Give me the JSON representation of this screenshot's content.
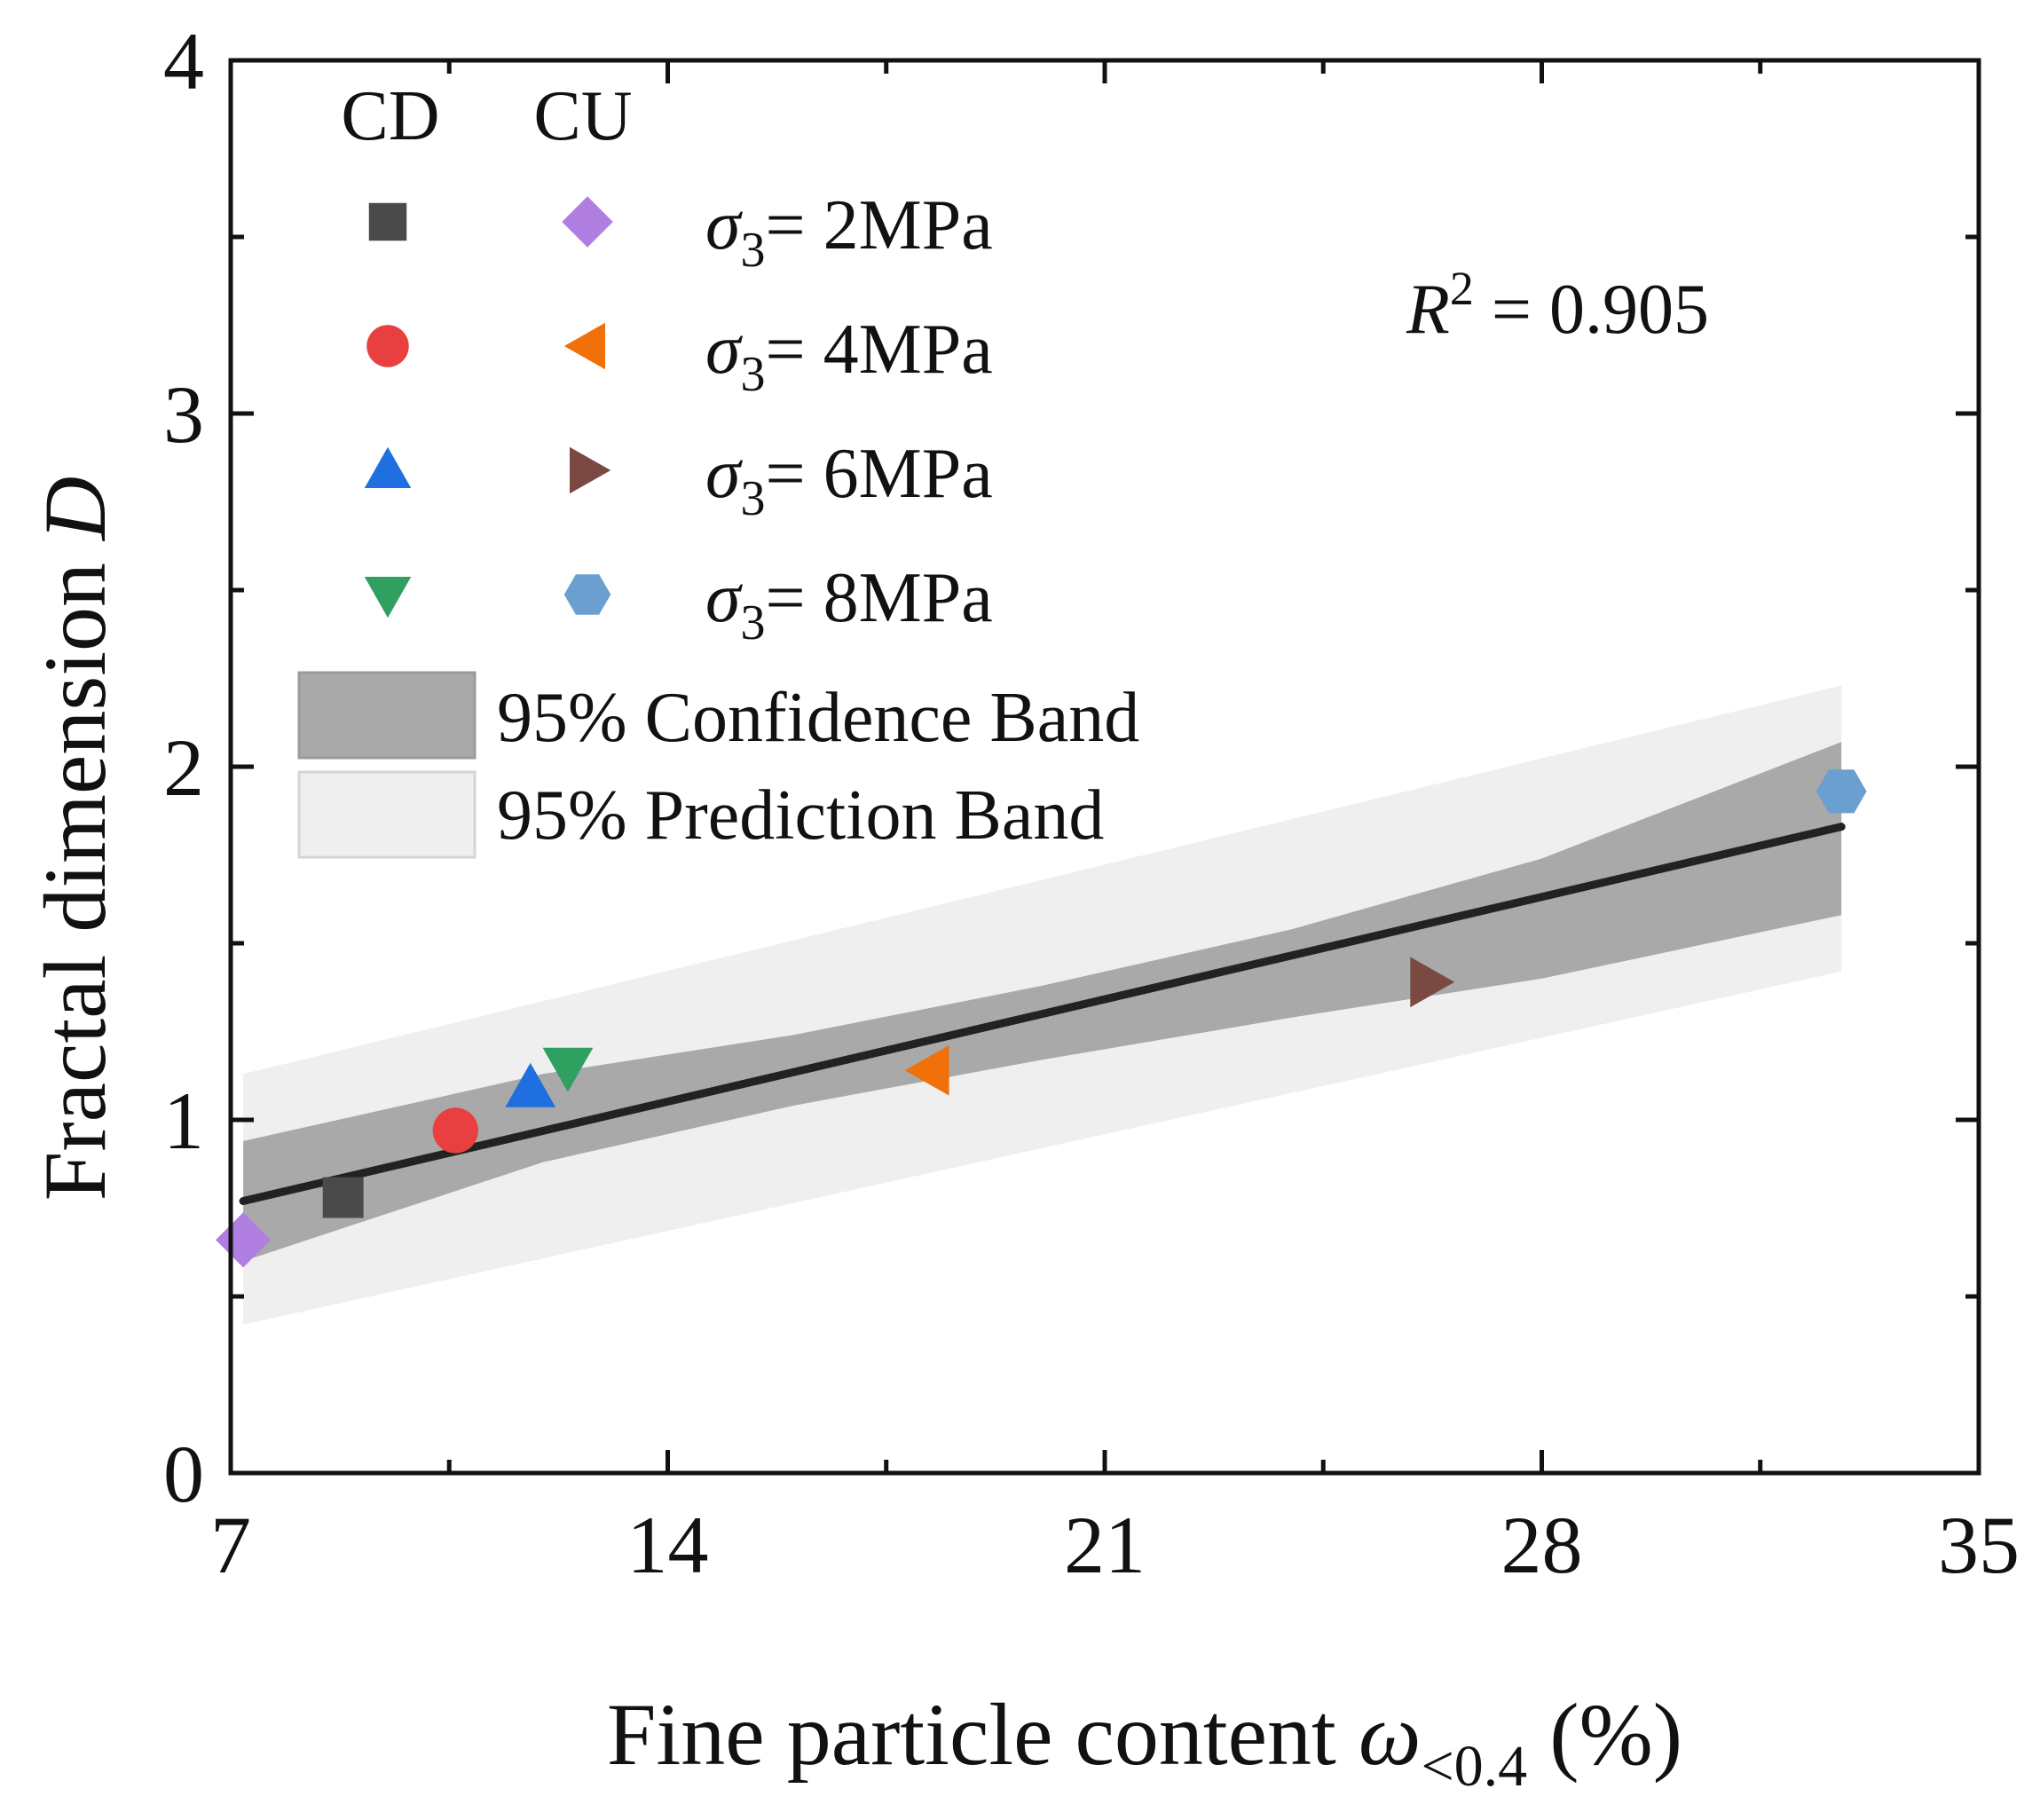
{
  "chart_data": {
    "type": "scatter",
    "x": {
      "label_text": "Fine particle content ",
      "label_symbol": "ω",
      "label_sub": "<0.4",
      "label_unit": " (%)",
      "range": [
        7,
        35
      ],
      "ticks": [
        7,
        14,
        21,
        28,
        35
      ],
      "minor_ticks": [
        10.5,
        17.5,
        24.5,
        31.5
      ]
    },
    "y": {
      "label_text": "Fractal dimension ",
      "label_symbol": "D",
      "range": [
        0,
        4
      ],
      "ticks": [
        0,
        1,
        2,
        3,
        4
      ],
      "minor_ticks": [
        0.5,
        1.5,
        2.5,
        3.5
      ]
    },
    "groups": [
      "CD",
      "CU"
    ],
    "series": [
      {
        "name": "CD σ3 = 2MPa",
        "group": "CD",
        "marker": "square",
        "color": "#4a4a4a",
        "x": 8.8,
        "y": 0.78
      },
      {
        "name": "CD σ3 = 4MPa",
        "group": "CD",
        "marker": "circle",
        "color": "#e84040",
        "x": 10.6,
        "y": 0.97
      },
      {
        "name": "CD σ3 = 6MPa",
        "group": "CD",
        "marker": "triangle-up",
        "color": "#1f6fe0",
        "x": 11.8,
        "y": 1.09
      },
      {
        "name": "CD σ3 = 8MPa",
        "group": "CD",
        "marker": "triangle-down",
        "color": "#2fa060",
        "x": 12.4,
        "y": 1.15
      },
      {
        "name": "CU σ3 = 2MPa",
        "group": "CU",
        "marker": "diamond",
        "color": "#b07ee0",
        "x": 7.2,
        "y": 0.66
      },
      {
        "name": "CU σ3 = 4MPa",
        "group": "CU",
        "marker": "triangle-left",
        "color": "#f0700a",
        "x": 18.2,
        "y": 1.14
      },
      {
        "name": "CU σ3 = 6MPa",
        "group": "CU",
        "marker": "triangle-right",
        "color": "#7a4a42",
        "x": 26.2,
        "y": 1.39
      },
      {
        "name": "CU σ3 = 8MPa",
        "group": "CU",
        "marker": "hexagon",
        "color": "#6b9fd0",
        "x": 32.8,
        "y": 1.93
      }
    ],
    "legend_rows": [
      {
        "sigma_symbol": "σ",
        "sigma_sub": "3",
        "text": "= 2MPa"
      },
      {
        "sigma_symbol": "σ",
        "sigma_sub": "3",
        "text": "= 4MPa"
      },
      {
        "sigma_symbol": "σ",
        "sigma_sub": "3",
        "text": "= 6MPa"
      },
      {
        "sigma_symbol": "σ",
        "sigma_sub": "3",
        "text": "= 8MPa"
      }
    ],
    "fit": {
      "type": "linear",
      "x_range": [
        7.2,
        32.8
      ],
      "y_start": 0.77,
      "y_end": 1.83,
      "color": "#222222"
    },
    "confidence_band": {
      "label": "95% Confidence Band",
      "color": "#a9a9a9",
      "x": [
        7.2,
        12,
        16,
        20,
        24,
        28,
        32.8
      ],
      "lower": [
        0.6,
        0.88,
        1.04,
        1.17,
        1.29,
        1.4,
        1.58
      ],
      "upper": [
        0.94,
        1.13,
        1.24,
        1.38,
        1.54,
        1.74,
        2.07
      ]
    },
    "prediction_band": {
      "label": "95% Prediction Band",
      "color": "#efefef",
      "x": [
        7.2,
        32.8
      ],
      "lower": [
        0.42,
        1.42
      ],
      "upper": [
        1.13,
        2.23
      ]
    },
    "annotation": {
      "r_symbol": "R",
      "r_exp": "2",
      "text": " = 0.905"
    }
  }
}
